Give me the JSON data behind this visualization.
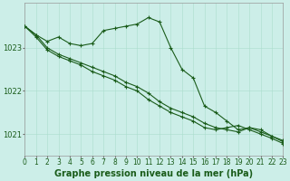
{
  "title": "Graphe pression niveau de la mer (hPa)",
  "background_color": "#cceee8",
  "grid_color": "#aaddcc",
  "line_color": "#1a5c1a",
  "x_labels": [
    "0",
    "1",
    "2",
    "3",
    "4",
    "5",
    "6",
    "7",
    "8",
    "9",
    "10",
    "11",
    "12",
    "13",
    "14",
    "15",
    "16",
    "17",
    "18",
    "19",
    "20",
    "21",
    "22",
    "23"
  ],
  "x_values": [
    0,
    1,
    2,
    3,
    4,
    5,
    6,
    7,
    8,
    9,
    10,
    11,
    12,
    13,
    14,
    15,
    16,
    17,
    18,
    19,
    20,
    21,
    22,
    23
  ],
  "series1": [
    1023.5,
    1023.3,
    1023.15,
    1023.25,
    1023.1,
    1023.05,
    1023.1,
    1023.4,
    1023.45,
    1023.5,
    1023.55,
    1023.7,
    1023.6,
    1023.0,
    1022.5,
    1022.3,
    1021.65,
    1021.5,
    1021.3,
    1021.1,
    1021.15,
    1021.1,
    1020.95,
    1020.85
  ],
  "series2": [
    1023.5,
    1023.3,
    1023.0,
    1022.85,
    1022.75,
    1022.65,
    1022.55,
    1022.45,
    1022.35,
    1022.2,
    1022.1,
    1021.95,
    1021.75,
    1021.6,
    1021.5,
    1021.4,
    1021.25,
    1021.15,
    1021.1,
    1021.05,
    1021.15,
    1021.05,
    1020.95,
    1020.82
  ],
  "series3": [
    1023.5,
    1023.25,
    1022.95,
    1022.8,
    1022.7,
    1022.6,
    1022.45,
    1022.35,
    1022.25,
    1022.1,
    1022.0,
    1021.8,
    1021.65,
    1021.5,
    1021.4,
    1021.3,
    1021.15,
    1021.1,
    1021.15,
    1021.2,
    1021.1,
    1021.0,
    1020.9,
    1020.78
  ],
  "ylim_min": 1020.5,
  "ylim_max": 1024.05,
  "yticks": [
    1021,
    1022,
    1023
  ],
  "ylabel_fontsize": 6,
  "xlabel_fontsize": 5.5,
  "title_fontsize": 7,
  "marker_size": 3,
  "line_width": 0.8
}
